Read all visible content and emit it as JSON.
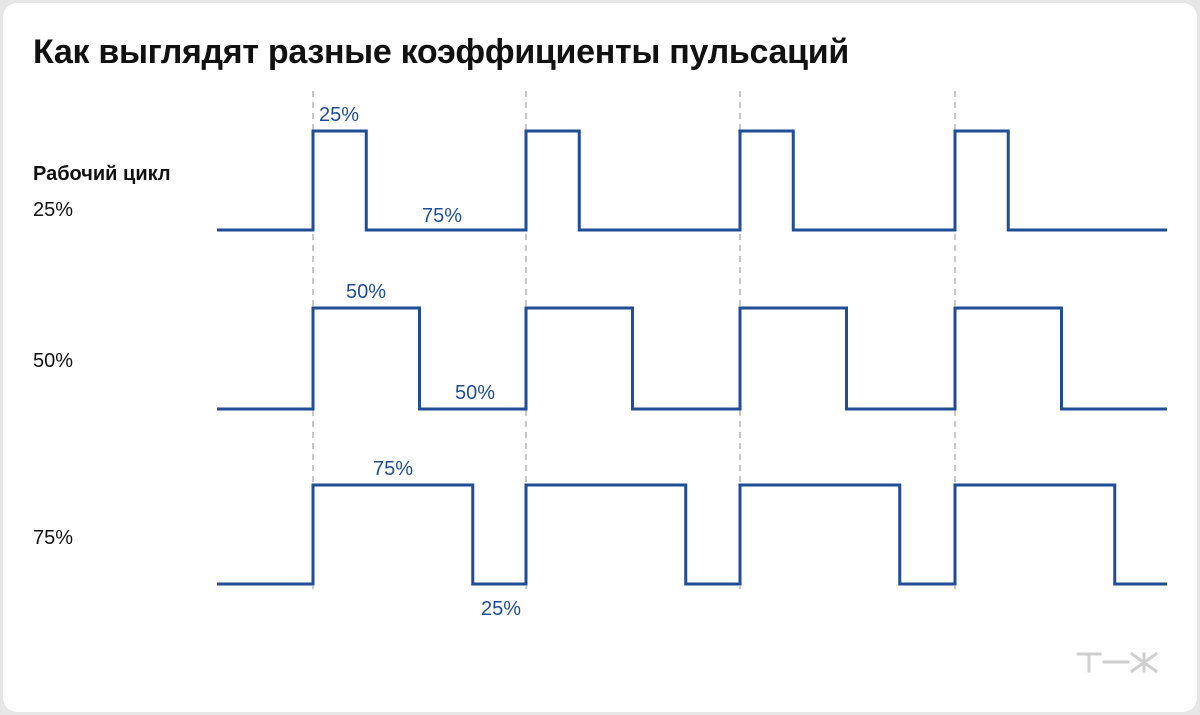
{
  "title": "Как выглядят разные коэффициенты пульсаций",
  "row_heading": "Рабочий цикл",
  "colors": {
    "wave": "#1f4e96",
    "guide": "#b5b5b5",
    "text": "#111111",
    "logo": "#cfcfcf"
  },
  "logo": "т—ж",
  "rows": [
    {
      "label": "25%",
      "duty": 0.25,
      "annotations": {
        "high": "25%",
        "low": "75%"
      }
    },
    {
      "label": "50%",
      "duty": 0.5,
      "annotations": {
        "high": "50%",
        "low": "50%"
      }
    },
    {
      "label": "75%",
      "duty": 0.75,
      "annotations": {
        "high": "75%",
        "low": "25%"
      }
    }
  ]
}
